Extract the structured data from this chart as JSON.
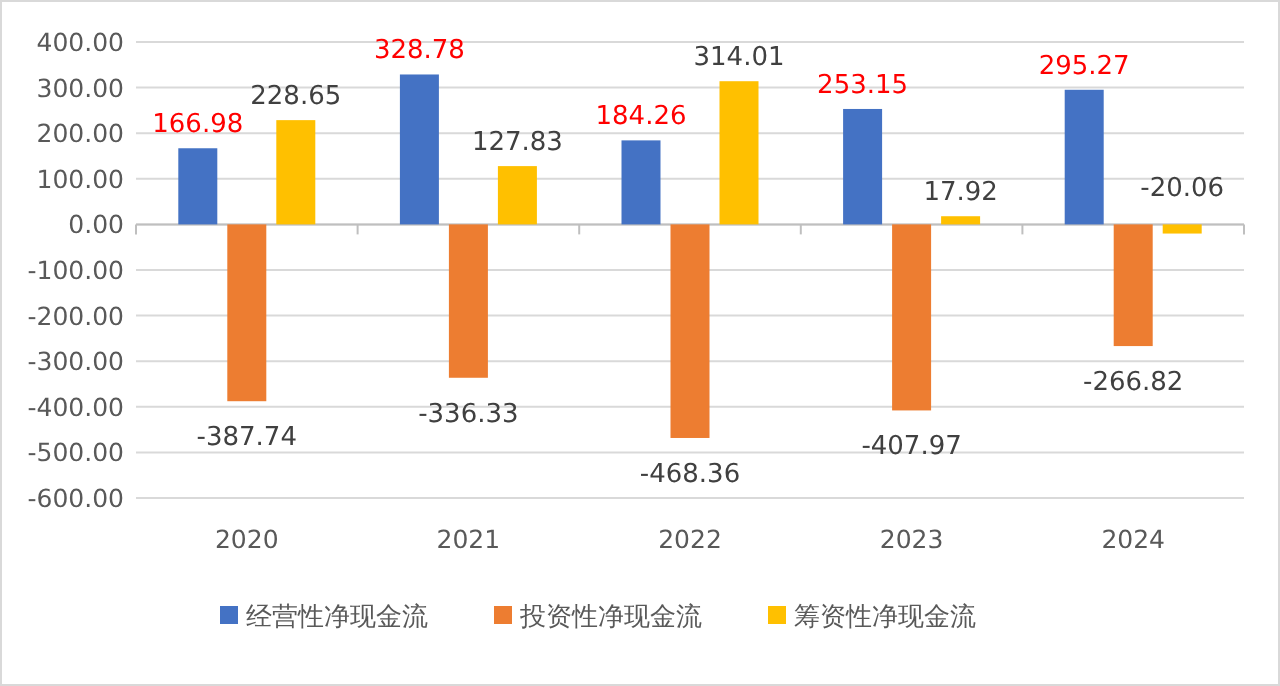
{
  "chart_data": {
    "type": "bar",
    "categories": [
      "2020",
      "2021",
      "2022",
      "2023",
      "2024"
    ],
    "series": [
      {
        "name": "经营性净现金流",
        "color": "#4472c4",
        "values": [
          166.98,
          328.78,
          184.26,
          253.15,
          295.27
        ]
      },
      {
        "name": "投资性净现金流",
        "color": "#ed7d31",
        "values": [
          -387.74,
          -336.33,
          -468.36,
          -407.97,
          -266.82
        ]
      },
      {
        "name": "筹资性净现金流",
        "color": "#ffc000",
        "values": [
          228.65,
          127.83,
          314.01,
          17.92,
          -20.06
        ]
      }
    ],
    "ylim": [
      -600,
      400
    ],
    "yticks": [
      {
        "value": -600,
        "label": "-600.00"
      },
      {
        "value": -500,
        "label": "-500.00"
      },
      {
        "value": -400,
        "label": "-400.00"
      },
      {
        "value": -300,
        "label": "-300.00"
      },
      {
        "value": -200,
        "label": "-200.00"
      },
      {
        "value": -100,
        "label": "-100.00"
      },
      {
        "value": 0,
        "label": "0.00"
      },
      {
        "value": 100,
        "label": "100.00"
      },
      {
        "value": 200,
        "label": "200.00"
      },
      {
        "value": 300,
        "label": "300.00"
      },
      {
        "value": 400,
        "label": "400.00"
      }
    ],
    "grid": "y",
    "legend": "bottom",
    "data_labels": true
  }
}
